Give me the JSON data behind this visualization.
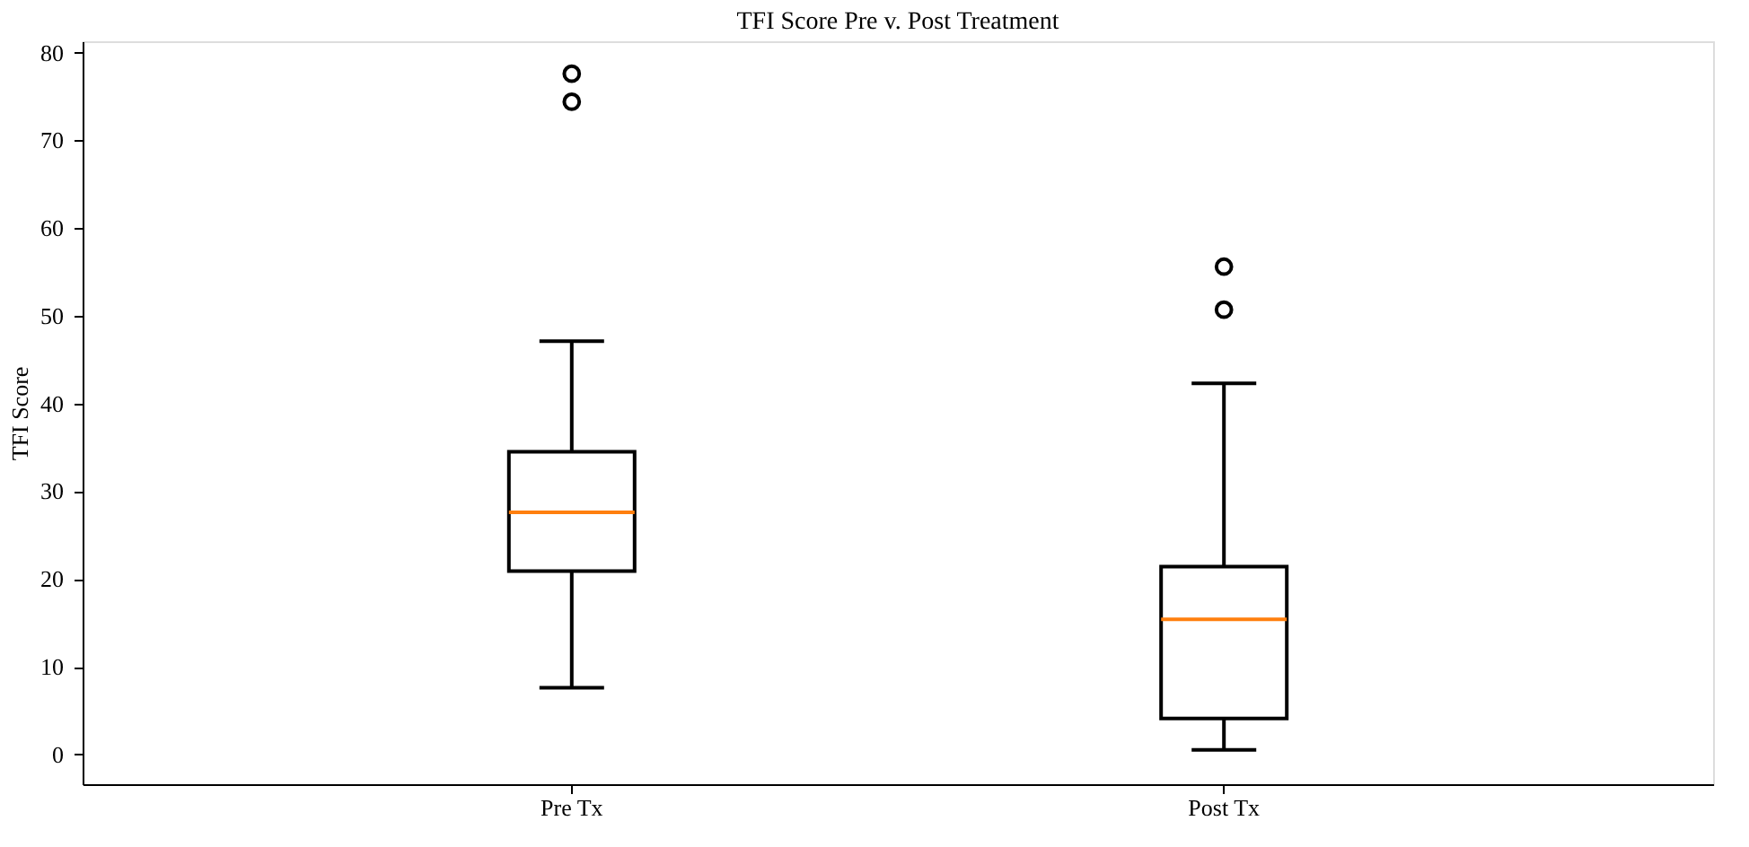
{
  "chart_data": {
    "type": "box",
    "title": "TFI Score Pre v. Post Treatment",
    "ylabel": "TFI Score",
    "categories": [
      "Pre Tx",
      "Post Tx"
    ],
    "boxes": [
      {
        "low": 7.6,
        "q1": 20.9,
        "median": 27.6,
        "q3": 34.5,
        "high": 47.1,
        "outliers": [
          77.6,
          74.4
        ]
      },
      {
        "low": 0.5,
        "q1": 4.1,
        "median": 15.4,
        "q3": 21.4,
        "high": 42.3,
        "outliers": [
          55.6,
          50.7
        ]
      }
    ],
    "color": "#000000",
    "ylim": [
      -3.4,
      81.3
    ],
    "yticks": [
      0,
      10,
      20,
      30,
      40,
      50,
      60,
      70,
      80
    ],
    "grid": false
  }
}
